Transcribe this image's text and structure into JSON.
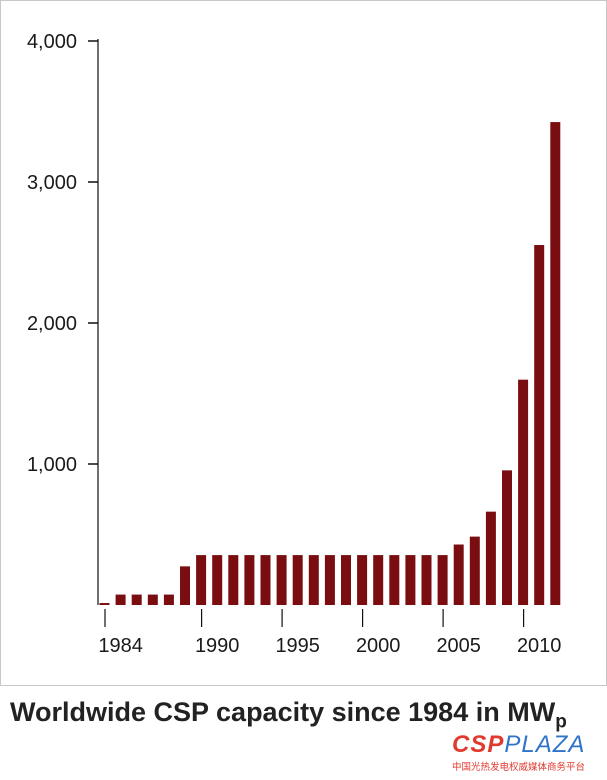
{
  "chart_data": {
    "type": "bar",
    "title": "",
    "xlabel": "",
    "ylabel": "",
    "ylim": [
      0,
      4000
    ],
    "y_ticks": [
      "4,000",
      "3,000",
      "2,000",
      "1,000"
    ],
    "y_tick_values": [
      4000,
      3000,
      2000,
      1000
    ],
    "x_tick_labels": [
      {
        "label": "1984",
        "year": 1984
      },
      {
        "label": "1990",
        "year": 1990
      },
      {
        "label": "1995",
        "year": 1995
      },
      {
        "label": "2000",
        "year": 2000
      },
      {
        "label": "2005",
        "year": 2005
      },
      {
        "label": "2010",
        "year": 2010
      }
    ],
    "x_axis_ticks_years": [
      1983,
      1989,
      1994,
      1999,
      2004,
      2009
    ],
    "categories": [
      1983,
      1984,
      1985,
      1986,
      1987,
      1988,
      1989,
      1990,
      1991,
      1992,
      1993,
      1994,
      1995,
      1996,
      1997,
      1998,
      1999,
      2000,
      2001,
      2002,
      2003,
      2004,
      2005,
      2006,
      2007,
      2008,
      2009,
      2010,
      2011
    ],
    "values": [
      14,
      74,
      74,
      74,
      74,
      274,
      354,
      354,
      354,
      354,
      354,
      354,
      354,
      354,
      354,
      354,
      354,
      354,
      354,
      354,
      354,
      354,
      429,
      485,
      662,
      955,
      1598,
      2553,
      3425
    ],
    "bar_color": "#7a0d10",
    "grid": false
  },
  "caption": {
    "text": "Worldwide CSP capacity since 1984 in MW",
    "subscript": "p"
  },
  "watermark": {
    "logo_a": "CSP",
    "logo_b": "PLAZA",
    "subtitle": "中国光热发电权威媒体商务平台"
  }
}
